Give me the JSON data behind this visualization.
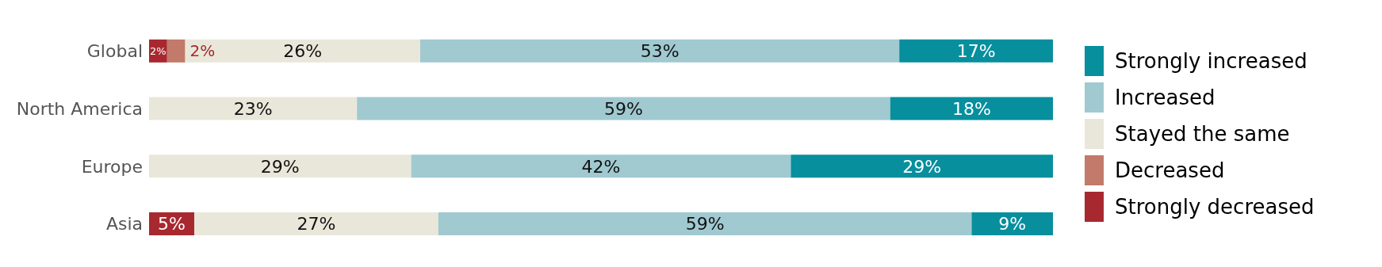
{
  "chart_data": {
    "type": "bar",
    "orientation": "horizontal",
    "stacked": true,
    "categories": [
      "Global",
      "North America",
      "Europe",
      "Asia"
    ],
    "legend": "right",
    "series": [
      {
        "name": "Strongly decreased",
        "color": "#a8282f",
        "values": [
          2,
          0,
          0,
          5
        ],
        "value_labels": [
          "2%",
          null,
          null,
          "5%"
        ]
      },
      {
        "name": "Decreased",
        "color": "#c27a6a",
        "values": [
          2,
          0,
          0,
          0
        ],
        "value_labels": [
          "2%",
          null,
          null,
          null
        ]
      },
      {
        "name": "Stayed the same",
        "color": "#e9e7da",
        "values": [
          26,
          23,
          29,
          27
        ],
        "value_labels": [
          "26%",
          "23%",
          "29%",
          "27%"
        ]
      },
      {
        "name": "Increased",
        "color": "#a0c9d0",
        "values": [
          53,
          59,
          42,
          59
        ],
        "value_labels": [
          "53%",
          "59%",
          "42%",
          "59%"
        ]
      },
      {
        "name": "Strongly increased",
        "color": "#078f9e",
        "values": [
          17,
          18,
          29,
          9
        ],
        "value_labels": [
          "17%",
          "18%",
          "29%",
          "9%"
        ]
      }
    ]
  }
}
